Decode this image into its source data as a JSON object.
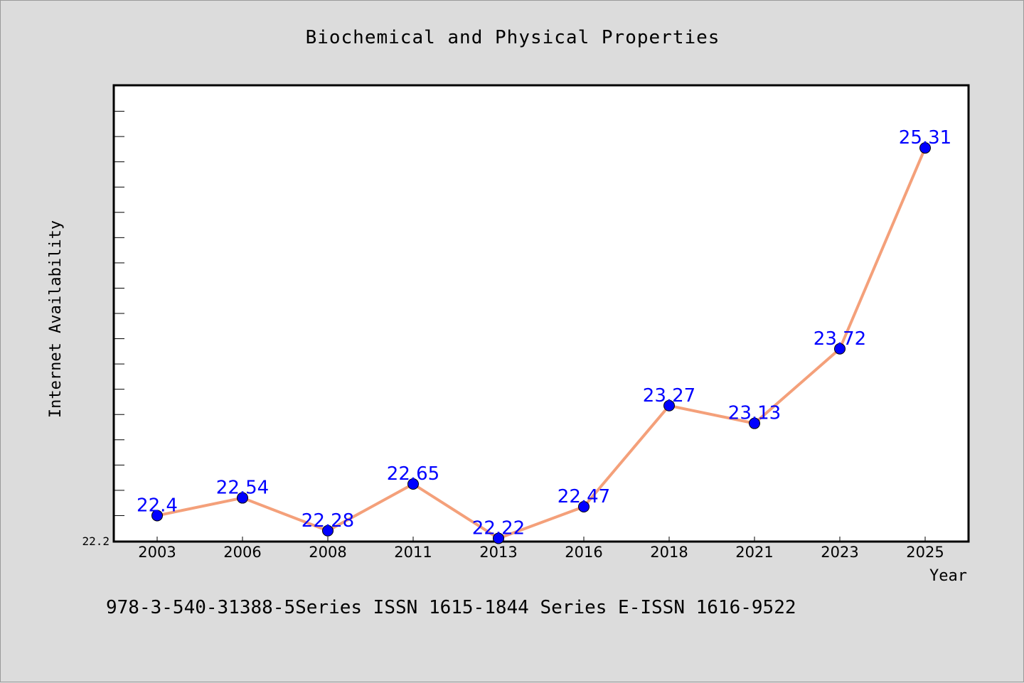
{
  "chart_data": {
    "type": "line",
    "title": "Biochemical and Physical Properties",
    "xlabel": "Year",
    "ylabel": "Internet Availability",
    "categories": [
      "2003",
      "2006",
      "2008",
      "2011",
      "2013",
      "2016",
      "2018",
      "2021",
      "2023",
      "2025"
    ],
    "values": [
      22.4,
      22.54,
      22.28,
      22.65,
      22.22,
      22.47,
      23.27,
      23.13,
      23.72,
      25.31
    ],
    "data_labels": [
      "22.4",
      "22.54",
      "22.28",
      "22.65",
      "22.22",
      "22.47",
      "23.27",
      "23.13",
      "23.72",
      "25.31"
    ],
    "ylim": [
      22.2,
      25.8
    ],
    "y_tick_label": "22.2",
    "grid": false,
    "line_color": "#f4a07a",
    "marker_color": "#0000ff"
  },
  "footer": {
    "text": "978-3-540-31388-5Series ISSN 1615-1844 Series E-ISSN 1616-9522"
  }
}
